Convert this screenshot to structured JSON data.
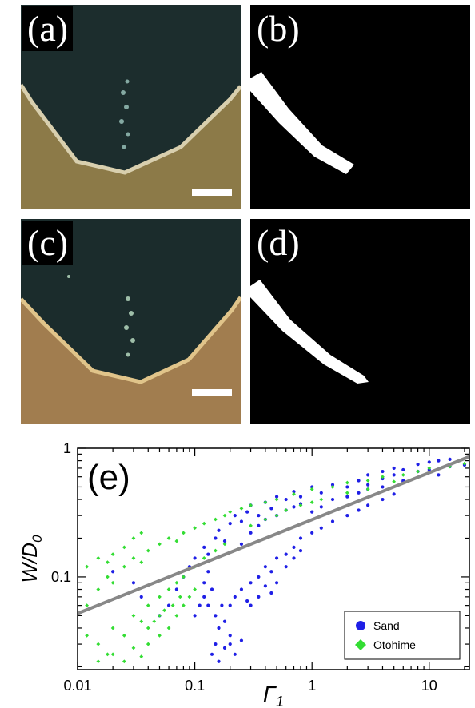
{
  "figure": {
    "panel_a_label": "(a)",
    "panel_b_label": "(b)",
    "panel_c_label": "(c)",
    "panel_d_label": "(d)",
    "panel_e_label": "(e)"
  },
  "colors": {
    "sand_sediment": "#8c7a48",
    "otohime_sediment": "#a17d4f",
    "water": "#1a2a2a",
    "sand_series": "#1f1fe6",
    "otohime_series": "#33dd33",
    "fit_line": "#888888"
  },
  "chart_data": {
    "type": "scatter",
    "title": "",
    "xlabel": "Γ",
    "xlabel_sub": "1",
    "ylabel": "W/D",
    "ylabel_sub": "0",
    "xscale": "log",
    "yscale": "log",
    "xlim": [
      0.01,
      22
    ],
    "ylim": [
      0.019,
      1.0
    ],
    "x_ticks": [
      0.01,
      0.1,
      1,
      10
    ],
    "x_tick_labels": [
      "0.01",
      "0.1",
      "1",
      "10"
    ],
    "y_ticks": [
      0.1,
      1
    ],
    "y_tick_labels": [
      "0.1",
      "1"
    ],
    "legend": {
      "placement": "bottom-right",
      "entries": [
        "Sand",
        "Otohime"
      ]
    },
    "fit_line": {
      "x": [
        0.01,
        22
      ],
      "y": [
        0.052,
        0.86
      ]
    },
    "series": [
      {
        "name": "Sand",
        "color": "#1f1fe6",
        "marker": "circle",
        "points": [
          [
            0.09,
            0.12
          ],
          [
            0.1,
            0.14
          ],
          [
            0.12,
            0.17
          ],
          [
            0.13,
            0.15
          ],
          [
            0.15,
            0.2
          ],
          [
            0.16,
            0.23
          ],
          [
            0.18,
            0.19
          ],
          [
            0.2,
            0.26
          ],
          [
            0.22,
            0.3
          ],
          [
            0.25,
            0.27
          ],
          [
            0.28,
            0.32
          ],
          [
            0.3,
            0.36
          ],
          [
            0.35,
            0.3
          ],
          [
            0.4,
            0.38
          ],
          [
            0.45,
            0.34
          ],
          [
            0.5,
            0.42
          ],
          [
            0.6,
            0.4
          ],
          [
            0.7,
            0.46
          ],
          [
            0.8,
            0.42
          ],
          [
            1.0,
            0.5
          ],
          [
            1.2,
            0.45
          ],
          [
            1.5,
            0.52
          ],
          [
            2.0,
            0.5
          ],
          [
            2.5,
            0.56
          ],
          [
            3.0,
            0.52
          ],
          [
            4.0,
            0.58
          ],
          [
            5.0,
            0.62
          ],
          [
            6.0,
            0.56
          ],
          [
            8.0,
            0.66
          ],
          [
            10.0,
            0.68
          ],
          [
            12.0,
            0.62
          ],
          [
            15.0,
            0.72
          ],
          [
            20.0,
            0.74
          ],
          [
            0.15,
            0.05
          ],
          [
            0.16,
            0.04
          ],
          [
            0.17,
            0.06
          ],
          [
            0.18,
            0.045
          ],
          [
            0.2,
            0.06
          ],
          [
            0.22,
            0.07
          ],
          [
            0.25,
            0.08
          ],
          [
            0.28,
            0.065
          ],
          [
            0.3,
            0.09
          ],
          [
            0.35,
            0.1
          ],
          [
            0.4,
            0.12
          ],
          [
            0.45,
            0.11
          ],
          [
            0.5,
            0.14
          ],
          [
            0.6,
            0.15
          ],
          [
            0.7,
            0.17
          ],
          [
            0.8,
            0.2
          ],
          [
            1.0,
            0.22
          ],
          [
            1.2,
            0.24
          ],
          [
            1.5,
            0.27
          ],
          [
            2.0,
            0.3
          ],
          [
            2.5,
            0.33
          ],
          [
            3.0,
            0.36
          ],
          [
            4.0,
            0.4
          ],
          [
            5.0,
            0.44
          ],
          [
            0.14,
            0.025
          ],
          [
            0.15,
            0.03
          ],
          [
            0.16,
            0.022
          ],
          [
            0.18,
            0.028
          ],
          [
            0.2,
            0.035
          ],
          [
            0.13,
            0.06
          ],
          [
            0.14,
            0.08
          ],
          [
            0.12,
            0.07
          ],
          [
            0.1,
            0.05
          ],
          [
            0.11,
            0.06
          ],
          [
            0.12,
            0.09
          ],
          [
            0.13,
            0.11
          ],
          [
            0.2,
            0.03
          ],
          [
            0.22,
            0.025
          ],
          [
            0.25,
            0.032
          ],
          [
            0.3,
            0.06
          ],
          [
            0.35,
            0.07
          ],
          [
            0.4,
            0.085
          ],
          [
            0.45,
            0.075
          ],
          [
            0.5,
            0.09
          ],
          [
            0.6,
            0.12
          ],
          [
            0.7,
            0.14
          ],
          [
            0.8,
            0.16
          ],
          [
            1.0,
            0.32
          ],
          [
            1.2,
            0.35
          ],
          [
            1.5,
            0.4
          ],
          [
            2.0,
            0.42
          ],
          [
            2.5,
            0.45
          ],
          [
            3.0,
            0.48
          ],
          [
            4.0,
            0.5
          ],
          [
            6.0,
            0.55
          ],
          [
            0.25,
            0.18
          ],
          [
            0.3,
            0.22
          ],
          [
            0.35,
            0.25
          ],
          [
            0.4,
            0.28
          ],
          [
            0.5,
            0.3
          ],
          [
            0.6,
            0.33
          ],
          [
            0.7,
            0.35
          ],
          [
            0.8,
            0.37
          ],
          [
            3.0,
            0.62
          ],
          [
            4.0,
            0.66
          ],
          [
            5.0,
            0.7
          ],
          [
            6.0,
            0.68
          ],
          [
            8.0,
            0.75
          ],
          [
            10.0,
            0.78
          ],
          [
            12.0,
            0.8
          ],
          [
            15.0,
            0.82
          ],
          [
            0.05,
            0.05
          ],
          [
            0.06,
            0.06
          ],
          [
            0.07,
            0.08
          ],
          [
            0.08,
            0.1
          ],
          [
            0.03,
            0.09
          ],
          [
            0.02,
            0.11
          ],
          [
            0.035,
            0.07
          ]
        ]
      },
      {
        "name": "Otohime",
        "color": "#33dd33",
        "marker": "diamond",
        "points": [
          [
            0.012,
            0.06
          ],
          [
            0.015,
            0.08
          ],
          [
            0.018,
            0.1
          ],
          [
            0.02,
            0.09
          ],
          [
            0.025,
            0.12
          ],
          [
            0.03,
            0.14
          ],
          [
            0.035,
            0.13
          ],
          [
            0.04,
            0.16
          ],
          [
            0.05,
            0.18
          ],
          [
            0.06,
            0.2
          ],
          [
            0.07,
            0.19
          ],
          [
            0.08,
            0.22
          ],
          [
            0.1,
            0.24
          ],
          [
            0.12,
            0.26
          ],
          [
            0.15,
            0.28
          ],
          [
            0.18,
            0.3
          ],
          [
            0.2,
            0.32
          ],
          [
            0.25,
            0.34
          ],
          [
            0.3,
            0.36
          ],
          [
            0.4,
            0.38
          ],
          [
            0.5,
            0.4
          ],
          [
            0.7,
            0.44
          ],
          [
            1.0,
            0.48
          ],
          [
            1.5,
            0.5
          ],
          [
            2.0,
            0.54
          ],
          [
            3.0,
            0.56
          ],
          [
            4.0,
            0.6
          ],
          [
            6.0,
            0.62
          ],
          [
            8.0,
            0.66
          ],
          [
            10.0,
            0.7
          ],
          [
            15.0,
            0.72
          ],
          [
            20.0,
            0.76
          ],
          [
            0.012,
            0.035
          ],
          [
            0.015,
            0.03
          ],
          [
            0.02,
            0.04
          ],
          [
            0.025,
            0.035
          ],
          [
            0.03,
            0.05
          ],
          [
            0.035,
            0.045
          ],
          [
            0.04,
            0.06
          ],
          [
            0.05,
            0.07
          ],
          [
            0.06,
            0.08
          ],
          [
            0.07,
            0.09
          ],
          [
            0.08,
            0.1
          ],
          [
            0.1,
            0.12
          ],
          [
            0.12,
            0.14
          ],
          [
            0.15,
            0.16
          ],
          [
            0.18,
            0.18
          ],
          [
            0.02,
            0.025
          ],
          [
            0.025,
            0.022
          ],
          [
            0.03,
            0.028
          ],
          [
            0.035,
            0.024
          ],
          [
            0.04,
            0.03
          ],
          [
            0.05,
            0.035
          ],
          [
            0.06,
            0.04
          ],
          [
            0.07,
            0.05
          ],
          [
            0.08,
            0.06
          ],
          [
            0.09,
            0.07
          ],
          [
            0.1,
            0.08
          ],
          [
            0.015,
            0.022
          ],
          [
            0.018,
            0.025
          ],
          [
            0.04,
            0.04
          ],
          [
            0.05,
            0.05
          ],
          [
            0.045,
            0.045
          ],
          [
            0.055,
            0.055
          ],
          [
            0.065,
            0.06
          ],
          [
            0.075,
            0.07
          ],
          [
            0.3,
            0.25
          ],
          [
            0.4,
            0.28
          ],
          [
            0.5,
            0.3
          ],
          [
            0.6,
            0.33
          ],
          [
            0.8,
            0.36
          ],
          [
            1.0,
            0.38
          ],
          [
            1.2,
            0.4
          ],
          [
            2.0,
            0.45
          ],
          [
            3.0,
            0.48
          ],
          [
            5.0,
            0.55
          ],
          [
            0.02,
            0.15
          ],
          [
            0.025,
            0.17
          ],
          [
            0.03,
            0.2
          ],
          [
            0.035,
            0.22
          ],
          [
            0.012,
            0.12
          ],
          [
            0.015,
            0.14
          ],
          [
            0.018,
            0.13
          ]
        ]
      }
    ]
  }
}
